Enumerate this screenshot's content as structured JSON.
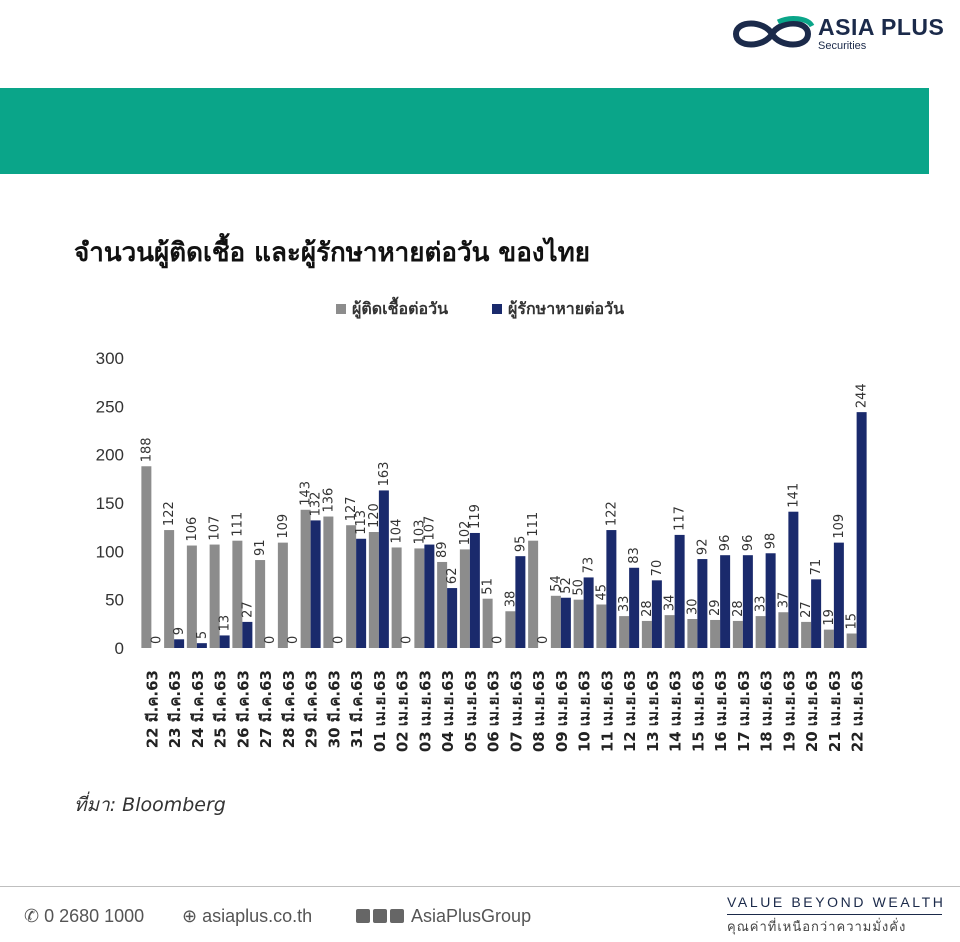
{
  "brand": {
    "name": "ASIA PLUS",
    "sub": "Securities",
    "color": "#1b2a4a",
    "accent": "#0aa589"
  },
  "banner": {
    "color": "#0aa589"
  },
  "source": "ที่มา: Bloomberg",
  "footer": {
    "phone": "0 2680 1000",
    "website": "asiaplus.co.th",
    "social": "AsiaPlusGroup",
    "slogan": "VALUE BEYOND WEALTH",
    "slogan_th": "คุณค่าที่เหนือกว่าความมั่งคั่ง"
  },
  "chart_data": {
    "type": "bar",
    "title": "จำนวนผู้ติดเชื้อ และผู้รักษาหายต่อวัน ของไทย",
    "ylim": [
      0,
      300
    ],
    "yticks": [
      0,
      50,
      100,
      150,
      200,
      250,
      300
    ],
    "grid": false,
    "legend_position": "top",
    "categories": [
      "22 มี.ค.63",
      "23 มี.ค.63",
      "24 มี.ค.63",
      "25 มี.ค.63",
      "26 มี.ค.63",
      "27 มี.ค.63",
      "28 มี.ค.63",
      "29 มี.ค.63",
      "30 มี.ค.63",
      "31 มี.ค.63",
      "01 เม.ย.63",
      "02 เม.ย.63",
      "03 เม.ย.63",
      "04 เม.ย.63",
      "05 เม.ย.63",
      "06 เม.ย.63",
      "07 เม.ย.63",
      "08 เม.ย.63",
      "09 เม.ย.63",
      "10 เม.ย.63",
      "11 เม.ย.63",
      "12 เม.ย.63",
      "13 เม.ย.63",
      "14 เม.ย.63",
      "15 เม.ย.63",
      "16 เม.ย.63",
      "17 เม.ย.63",
      "18 เม.ย.63",
      "19 เม.ย.63",
      "20 เม.ย.63",
      "21 เม.ย.63",
      "22 เม.ย.63"
    ],
    "series": [
      {
        "name": "ผู้ติดเชื้อต่อวัน",
        "color": "#8c8c8c",
        "values": [
          188,
          122,
          106,
          107,
          111,
          91,
          109,
          143,
          136,
          127,
          120,
          104,
          103,
          89,
          102,
          51,
          38,
          111,
          54,
          50,
          45,
          33,
          28,
          34,
          30,
          29,
          28,
          33,
          37,
          27,
          19,
          15
        ]
      },
      {
        "name": "ผู้รักษาหายต่อวัน",
        "color": "#1a2a6c",
        "values": [
          0,
          9,
          5,
          13,
          27,
          0,
          0,
          132,
          0,
          113,
          163,
          0,
          107,
          62,
          119,
          0,
          95,
          0,
          52,
          73,
          122,
          83,
          70,
          117,
          92,
          96,
          96,
          98,
          141,
          71,
          109,
          244
        ]
      }
    ]
  }
}
